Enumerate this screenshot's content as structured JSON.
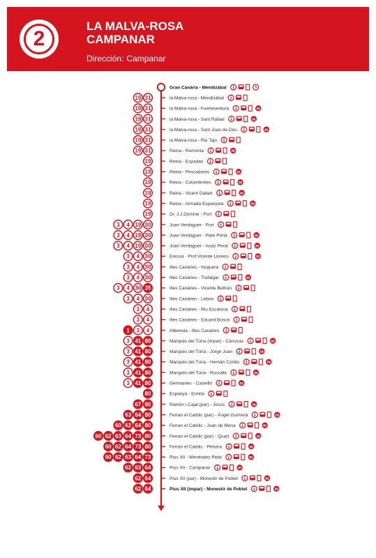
{
  "header": {
    "route_number": "2",
    "title_line1": "LA MALVA-ROSA",
    "title_line2": "CAMPANAR",
    "direction_label": "Dirección:",
    "direction_value": "Campanar"
  },
  "colors": {
    "accent": "#d4141e"
  },
  "stops": [
    {
      "name": "Gran Canària - Mendizàbal",
      "bold": true,
      "lines": [],
      "icons": [
        "info-icon",
        "bus-icon",
        "bike-icon",
        "clock-icon"
      ]
    },
    {
      "name": "la Malva-rosa - Mendizàbal",
      "lines": [
        {
          "n": "19"
        },
        {
          "n": "31"
        }
      ],
      "icons": [
        "info-icon",
        "bus-icon",
        "bike-icon"
      ]
    },
    {
      "name": "la Malva-rosa - Fuerteventura",
      "lines": [
        {
          "n": "19"
        },
        {
          "n": "31"
        }
      ],
      "icons": [
        "info-icon",
        "bus-icon",
        "bike-icon",
        "metro-icon"
      ]
    },
    {
      "name": "la Malva-rosa - Sant Rafael",
      "lines": [
        {
          "n": "19"
        },
        {
          "n": "31"
        }
      ],
      "icons": [
        "info-icon",
        "bus-icon",
        "bike-icon",
        "metro-icon"
      ]
    },
    {
      "name": "la Malva-rosa - Sant Joan de Déu",
      "lines": [
        {
          "n": "19"
        },
        {
          "n": "31"
        }
      ],
      "icons": [
        "info-icon",
        "bus-icon",
        "bike-icon",
        "metro-icon"
      ]
    },
    {
      "name": "la Malva-rosa - Riu Tajo",
      "lines": [
        {
          "n": "19"
        },
        {
          "n": "31"
        }
      ],
      "icons": [
        "info-icon",
        "bus-icon",
        "bike-icon"
      ]
    },
    {
      "name": "Reina - Remonta",
      "lines": [
        {
          "n": "19"
        },
        {
          "n": "31"
        }
      ],
      "icons": [
        "info-icon",
        "bus-icon",
        "bike-icon",
        "metro-icon"
      ]
    },
    {
      "name": "Reina - Espadan",
      "lines": [
        {
          "n": "19"
        }
      ],
      "icons": [
        "info-icon",
        "bus-icon",
        "bike-icon"
      ]
    },
    {
      "name": "Reina - Pescadores",
      "lines": [
        {
          "n": "19"
        }
      ],
      "icons": [
        "info-icon",
        "bus-icon",
        "bike-icon",
        "metro-icon"
      ]
    },
    {
      "name": "Reina - Columbretes",
      "lines": [
        {
          "n": "19"
        }
      ],
      "icons": [
        "info-icon",
        "bus-icon",
        "bike-icon",
        "metro-icon"
      ]
    },
    {
      "name": "Reina - Vicent Gallart",
      "lines": [
        {
          "n": "19"
        }
      ],
      "icons": [
        "info-icon",
        "bus-icon",
        "bike-icon",
        "metro-icon"
      ]
    },
    {
      "name": "Reina - Armada Espanyola",
      "lines": [
        {
          "n": "19"
        }
      ],
      "icons": [
        "info-icon",
        "bus-icon",
        "bike-icon",
        "metro-icon"
      ]
    },
    {
      "name": "Dr. J.J.Dòmine - Port",
      "lines": [
        {
          "n": "19"
        }
      ],
      "icons": [
        "info-icon",
        "bus-icon",
        "bike-icon"
      ]
    },
    {
      "name": "Joan Verdaguer - Port",
      "lines": [
        {
          "n": "3"
        },
        {
          "n": "4"
        },
        {
          "n": "19"
        },
        {
          "n": "30"
        }
      ],
      "icons": [
        "info-icon",
        "bus-icon",
        "bike-icon"
      ]
    },
    {
      "name": "Joan Verdaguer - Pare Porta",
      "lines": [
        {
          "n": "3"
        },
        {
          "n": "4"
        },
        {
          "n": "19"
        },
        {
          "n": "30"
        }
      ],
      "icons": [
        "info-icon",
        "bus-icon",
        "bike-icon",
        "metro-icon"
      ]
    },
    {
      "name": "Joan Verdaguer - Issac Peral",
      "lines": [
        {
          "n": "3"
        },
        {
          "n": "4"
        },
        {
          "n": "19"
        },
        {
          "n": "30"
        }
      ],
      "icons": [
        "info-icon",
        "bus-icon",
        "bike-icon",
        "metro-icon"
      ]
    },
    {
      "name": "Eivissa - Prof.Vicente Llorens",
      "lines": [
        {
          "n": "3"
        },
        {
          "n": "4"
        },
        {
          "n": "30"
        }
      ],
      "icons": [
        "info-icon",
        "bus-icon",
        "bike-icon",
        "metro-icon"
      ]
    },
    {
      "name": "Illes Canàries - Noguera",
      "lines": [
        {
          "n": "3"
        },
        {
          "n": "4"
        },
        {
          "n": "30"
        }
      ],
      "icons": [
        "info-icon",
        "bus-icon",
        "bike-icon"
      ]
    },
    {
      "name": "Illes Canàries - Trafalgar",
      "lines": [
        {
          "n": "3"
        },
        {
          "n": "4"
        },
        {
          "n": "30"
        }
      ],
      "icons": [
        "info-icon",
        "bus-icon",
        "bike-icon",
        "metro-icon"
      ]
    },
    {
      "name": "Illes Canàries - Vicente Beltrán",
      "lines": [
        {
          "n": "3"
        },
        {
          "n": "4"
        },
        {
          "n": "30"
        },
        {
          "n": "35",
          "filled": true
        }
      ],
      "icons": [
        "info-icon",
        "bus-icon",
        "bike-icon"
      ]
    },
    {
      "name": "Illes Canàries - Lebon",
      "lines": [
        {
          "n": "3"
        },
        {
          "n": "4"
        },
        {
          "n": "30"
        }
      ],
      "icons": [
        "info-icon",
        "bus-icon",
        "bike-icon"
      ]
    },
    {
      "name": "Illes Canàries - Riu Escalona",
      "lines": [
        {
          "n": "3"
        },
        {
          "n": "4"
        }
      ],
      "icons": [
        "info-icon",
        "bus-icon",
        "bike-icon"
      ]
    },
    {
      "name": "Illes Canàries - Eduard Boscà",
      "lines": [
        {
          "n": "3"
        },
        {
          "n": "4"
        }
      ],
      "icons": [
        "info-icon",
        "bus-icon",
        "bike-icon"
      ]
    },
    {
      "name": "Albereda - Illes Canàries",
      "lines": [
        {
          "n": "1",
          "filled": true
        },
        {
          "n": "3"
        },
        {
          "n": "4"
        }
      ],
      "icons": [
        "info-icon",
        "bus-icon",
        "bike-icon"
      ]
    },
    {
      "name": "Marqués del Túria (impar) - Cánovas",
      "lines": [
        {
          "n": "3"
        },
        {
          "n": "41",
          "filled": true
        },
        {
          "n": "80",
          "filled": true
        }
      ],
      "icons": [
        "info-icon",
        "bus-icon",
        "bike-icon",
        "metro-icon"
      ]
    },
    {
      "name": "Marqués del Túria - Jorge Juan",
      "lines": [
        {
          "n": "3"
        },
        {
          "n": "41",
          "filled": true
        },
        {
          "n": "80",
          "filled": true
        }
      ],
      "icons": [
        "info-icon",
        "bus-icon",
        "bike-icon",
        "metro-icon"
      ]
    },
    {
      "name": "Marqués del Túria - Hernán Cortés",
      "lines": [
        {
          "n": "3"
        },
        {
          "n": "41",
          "filled": true
        },
        {
          "n": "80",
          "filled": true
        }
      ],
      "icons": [
        "info-icon",
        "bus-icon",
        "bike-icon",
        "metro-icon"
      ]
    },
    {
      "name": "Marqués del Túria - Russafa",
      "lines": [
        {
          "n": "3"
        },
        {
          "n": "41",
          "filled": true
        },
        {
          "n": "80",
          "filled": true
        }
      ],
      "icons": [
        "info-icon",
        "bus-icon",
        "bike-icon",
        "metro-icon"
      ]
    },
    {
      "name": "Germanies - Castelló",
      "lines": [
        {
          "n": "3"
        },
        {
          "n": "41",
          "filled": true
        },
        {
          "n": "80",
          "filled": true
        }
      ],
      "icons": [
        "info-icon",
        "bus-icon",
        "bike-icon",
        "metro-icon"
      ]
    },
    {
      "name": "Espanya - Ermita",
      "lines": [
        {
          "n": "80",
          "filled": true
        }
      ],
      "icons": [
        "info-icon",
        "bus-icon",
        "bike-icon"
      ]
    },
    {
      "name": "Ramón i Cajal (par) - Jesús",
      "lines": [
        {
          "n": "67",
          "filled": true
        },
        {
          "n": "80",
          "filled": true
        }
      ],
      "icons": [
        "info-icon",
        "bus-icon",
        "bike-icon",
        "metro-icon"
      ]
    },
    {
      "name": "Ferran el Catòlic (par) - Ángel Guimerà",
      "lines": [
        {
          "n": "63",
          "filled": true
        },
        {
          "n": "64",
          "filled": true
        },
        {
          "n": "80",
          "filled": true
        }
      ],
      "icons": [
        "info-icon",
        "bus-icon",
        "bike-icon",
        "metro-icon"
      ]
    },
    {
      "name": "Ferran el Catòlic - Juan de Mena",
      "lines": [
        {
          "n": "60",
          "filled": true
        },
        {
          "n": "62",
          "filled": true
        },
        {
          "n": "64",
          "filled": true
        },
        {
          "n": "80",
          "filled": true
        }
      ],
      "icons": [
        "info-icon",
        "bus-icon",
        "bike-icon",
        "metro-icon"
      ]
    },
    {
      "name": "Ferran el Catòlic (par) - Quart",
      "lines": [
        {
          "n": "60",
          "filled": true
        },
        {
          "n": "62",
          "filled": true
        },
        {
          "n": "63",
          "filled": true
        },
        {
          "n": "64",
          "filled": true
        },
        {
          "n": "73",
          "filled": true
        },
        {
          "n": "80",
          "filled": true
        }
      ],
      "icons": [
        "info-icon",
        "bus-icon",
        "bike-icon",
        "metro-icon"
      ]
    },
    {
      "name": "Ferran el Catòlic - Petxina",
      "lines": [
        {
          "n": "60",
          "filled": true
        },
        {
          "n": "62",
          "filled": true
        },
        {
          "n": "64",
          "filled": true
        },
        {
          "n": "73",
          "filled": true
        },
        {
          "n": "80",
          "filled": true
        }
      ],
      "icons": [
        "info-icon",
        "bus-icon",
        "bike-icon",
        "metro-icon"
      ]
    },
    {
      "name": "Pius XII - Menéndez Pidal",
      "lines": [
        {
          "n": "60",
          "filled": true
        },
        {
          "n": "62",
          "filled": true
        },
        {
          "n": "63",
          "filled": true
        },
        {
          "n": "64",
          "filled": true
        },
        {
          "n": "73",
          "filled": true
        }
      ],
      "icons": [
        "info-icon",
        "bus-icon",
        "bike-icon",
        "metro-icon"
      ]
    },
    {
      "name": "Pius XII - Campanar",
      "lines": [
        {
          "n": "62",
          "filled": true
        },
        {
          "n": "63",
          "filled": true
        },
        {
          "n": "64",
          "filled": true
        }
      ],
      "icons": [
        "info-icon",
        "bus-icon",
        "bike-icon",
        "metro-icon"
      ]
    },
    {
      "name": "Pius XII (par) - Monestir de Poblet",
      "lines": [
        {
          "n": "62",
          "filled": true
        },
        {
          "n": "64",
          "filled": true
        }
      ],
      "icons": [
        "info-icon",
        "bus-icon",
        "bike-icon",
        "metro-icon"
      ]
    },
    {
      "name": "Pius XII (impar) - Monestir de Poblet",
      "bold": true,
      "lines": [
        {
          "n": "62",
          "filled": true
        },
        {
          "n": "64",
          "filled": true
        }
      ],
      "icons": [
        "info-icon",
        "bus-icon",
        "bike-icon",
        "metro-icon"
      ]
    }
  ]
}
